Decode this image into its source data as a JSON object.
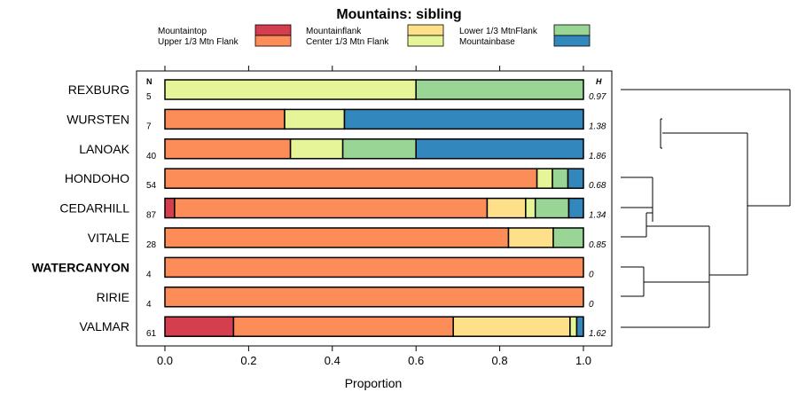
{
  "chart_data": {
    "type": "bar",
    "subtype": "horizontal-stacked-proportion",
    "title": "Mountains: sibling",
    "xlabel": "Proportion",
    "xlim": [
      0,
      1
    ],
    "xticks": [
      "0.0",
      "0.2",
      "0.4",
      "0.6",
      "0.8",
      "1.0"
    ],
    "n_header": "N",
    "h_header": "H",
    "legend": [
      {
        "name": "Mountaintop",
        "color": "#D53E4F"
      },
      {
        "name": "Upper 1/3 Mtn Flank",
        "color": "#FC8D59"
      },
      {
        "name": "Mountainflank",
        "color": "#FEE08B"
      },
      {
        "name": "Center 1/3 Mtn Flank",
        "color": "#E6F598"
      },
      {
        "name": "Lower 1/3 MtnFlank",
        "color": "#99D594"
      },
      {
        "name": "Mountainbase",
        "color": "#3288BD"
      }
    ],
    "categories": [
      {
        "label": "REXBURG",
        "n": "5",
        "h": "0.97",
        "bold": false,
        "values": [
          0,
          0,
          0,
          0.6,
          0.4,
          0
        ]
      },
      {
        "label": "WURSTEN",
        "n": "7",
        "h": "1.38",
        "bold": false,
        "values": [
          0,
          0.286,
          0,
          0.143,
          0,
          0.571
        ]
      },
      {
        "label": "LANOAK",
        "n": "40",
        "h": "1.86",
        "bold": false,
        "values": [
          0,
          0.3,
          0,
          0.125,
          0.175,
          0.4
        ]
      },
      {
        "label": "HONDOHO",
        "n": "54",
        "h": "0.68",
        "bold": false,
        "values": [
          0,
          0.889,
          0,
          0.037,
          0.037,
          0.037
        ]
      },
      {
        "label": "CEDARHILL",
        "n": "87",
        "h": "1.34",
        "bold": false,
        "values": [
          0.023,
          0.747,
          0.092,
          0.023,
          0.08,
          0.035
        ]
      },
      {
        "label": "VITALE",
        "n": "28",
        "h": "0.85",
        "bold": false,
        "values": [
          0,
          0.821,
          0.107,
          0,
          0.072,
          0
        ]
      },
      {
        "label": "WATERCANYON",
        "n": "4",
        "h": "0",
        "bold": true,
        "values": [
          0,
          1.0,
          0,
          0,
          0,
          0
        ]
      },
      {
        "label": "RIRIE",
        "n": "4",
        "h": "0",
        "bold": false,
        "values": [
          0,
          1.0,
          0,
          0,
          0,
          0
        ]
      },
      {
        "label": "VALMAR",
        "n": "61",
        "h": "1.62",
        "bold": false,
        "values": [
          0.164,
          0.525,
          0.279,
          0.016,
          0,
          0.016
        ]
      }
    ],
    "dendrogram": {
      "leaf_order": [
        "REXBURG",
        "WURSTEN",
        "LANOAK",
        "HONDOHO",
        "CEDARHILL",
        "VITALE",
        "WATERCANYON",
        "RIRIE",
        "VALMAR"
      ],
      "merges": [
        {
          "left": [
            1
          ],
          "right": [
            2
          ],
          "height": 0.08
        },
        {
          "left": [
            3
          ],
          "right": [
            4
          ],
          "height": 0.07
        },
        {
          "left": [
            5
          ],
          "right": [
            6
          ],
          "height": 0.2
        },
        {
          "left": [
            6
          ],
          "right": [
            7
          ],
          "height": 0.0
        },
        {
          "left": [
            5,
            6
          ],
          "right": [
            7
          ],
          "height": 0.03
        }
      ]
    }
  }
}
